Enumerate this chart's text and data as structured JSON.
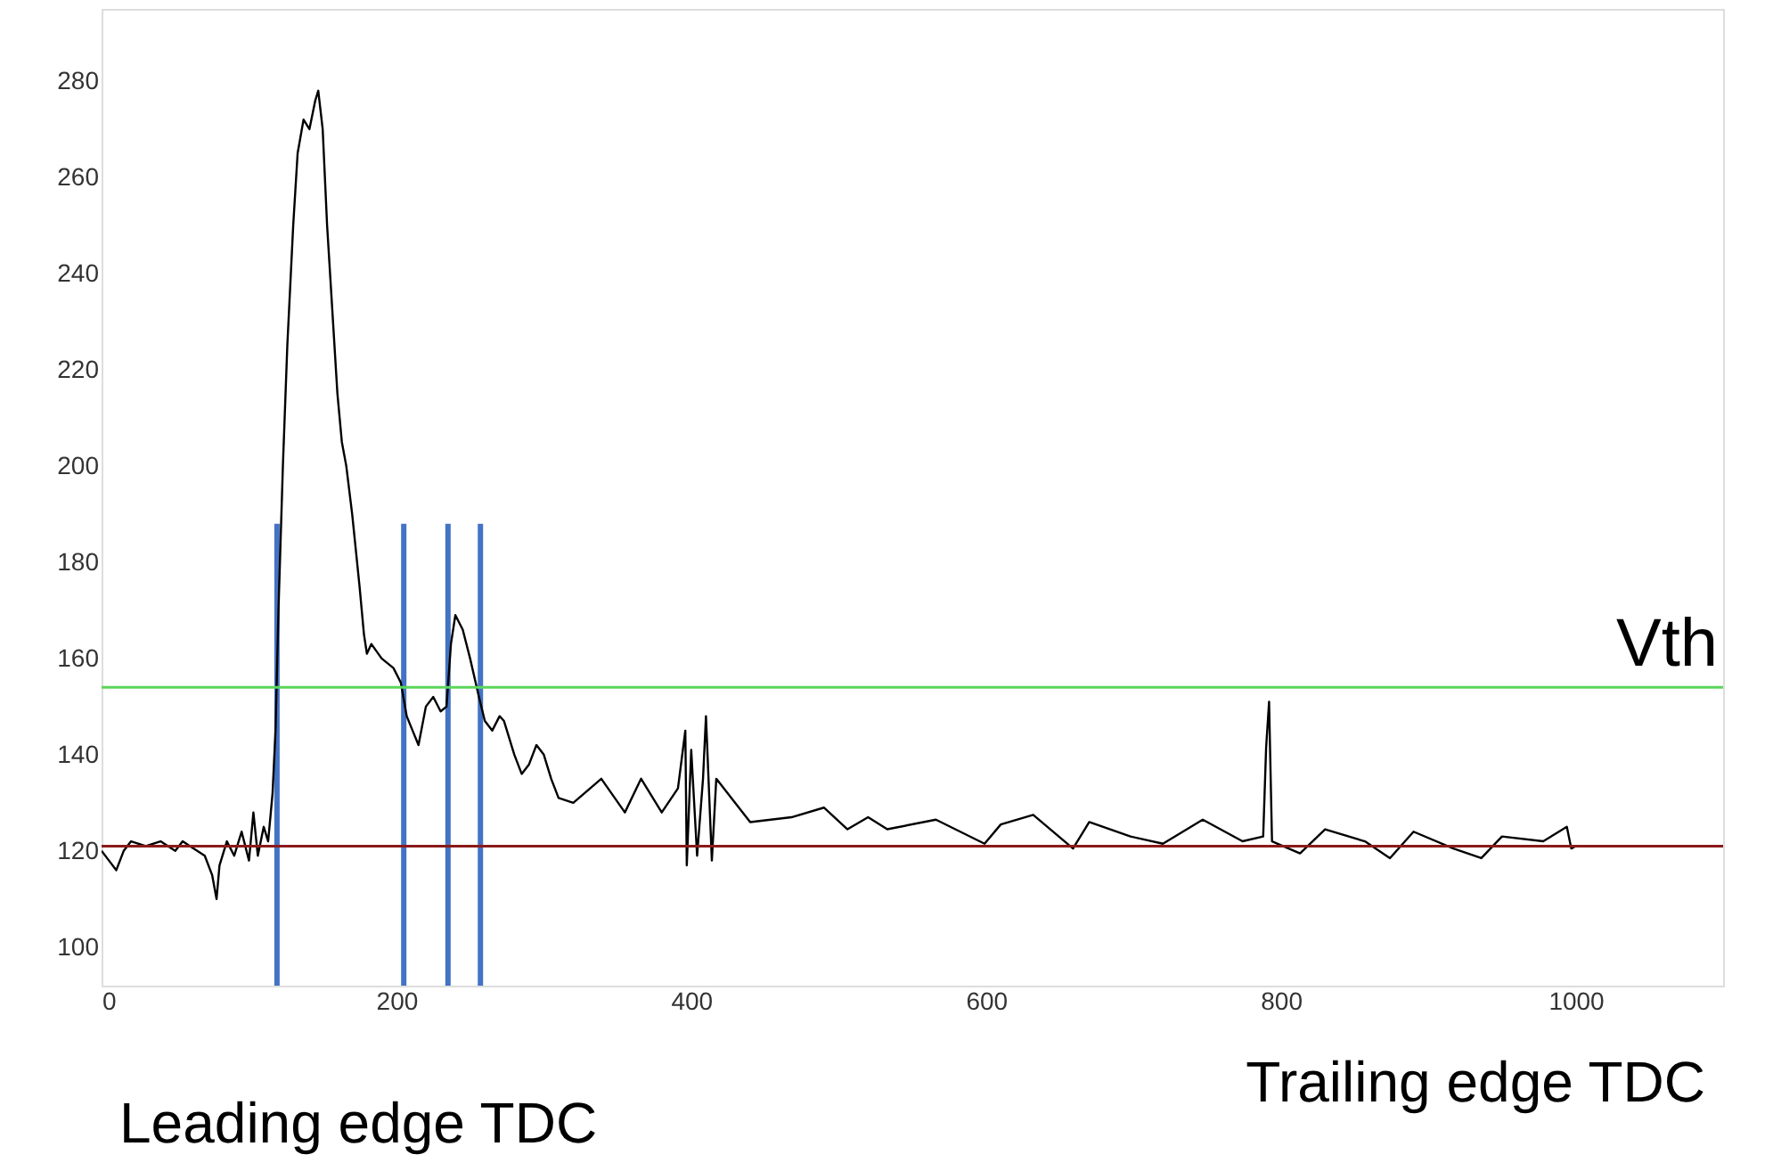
{
  "chart_data": {
    "type": "line",
    "xlim": [
      0,
      1100
    ],
    "ylim": [
      92,
      295
    ],
    "xticks": [
      0,
      200,
      400,
      600,
      800,
      1000
    ],
    "yticks": [
      100,
      120,
      140,
      160,
      180,
      200,
      220,
      240,
      260,
      280
    ],
    "grid": false,
    "line_style": "solid",
    "series": [
      {
        "color": "#000000",
        "x": [
          0,
          5,
          10,
          15,
          20,
          30,
          40,
          50,
          55,
          60,
          70,
          75,
          78,
          80,
          85,
          90,
          95,
          100,
          103,
          106,
          110,
          113,
          116,
          118,
          120,
          123,
          126,
          130,
          133,
          137,
          141,
          145,
          147,
          150,
          153,
          157,
          160,
          163,
          166,
          170,
          175,
          178,
          180,
          183,
          190,
          198,
          203,
          207,
          211,
          215,
          220,
          225,
          230,
          234,
          237,
          240,
          245,
          250,
          256,
          260,
          265,
          270,
          273,
          280,
          285,
          290,
          295,
          300,
          305,
          310,
          320,
          339,
          355,
          366,
          380,
          391,
          396,
          397,
          400,
          404,
          408,
          410,
          414,
          417,
          440,
          468,
          490,
          506,
          520,
          533,
          566,
          599,
          610,
          632,
          659,
          670,
          698,
          720,
          747,
          774,
          788,
          790,
          792,
          794,
          813,
          830,
          857,
          874,
          890,
          917,
          936,
          950,
          978,
          994,
          997,
          1000
        ],
        "values": [
          120,
          118,
          116,
          120,
          122,
          121,
          122,
          120,
          122,
          121,
          119,
          115,
          110,
          117,
          122,
          119,
          124,
          118,
          128,
          119,
          125,
          122,
          132,
          145,
          170,
          200,
          225,
          250,
          265,
          272,
          270,
          276,
          278,
          270,
          250,
          230,
          215,
          205,
          200,
          190,
          175,
          165,
          161,
          163,
          160,
          158,
          155,
          148,
          145,
          142,
          150,
          152,
          149,
          150,
          163,
          169,
          166,
          160,
          152,
          147,
          145,
          148,
          147,
          140,
          136,
          138,
          142,
          140,
          135,
          131,
          130,
          135,
          128,
          135,
          128,
          133,
          145,
          117,
          141,
          119,
          135,
          148,
          118,
          135,
          126,
          127,
          129,
          124.5,
          127,
          124.5,
          126.5,
          121.5,
          125.5,
          127.5,
          120.5,
          126,
          123,
          121.5,
          126.5,
          122,
          123,
          141.5,
          151,
          122,
          119.5,
          124.5,
          122,
          118.5,
          124,
          120.5,
          118.5,
          123,
          122,
          125,
          120.5,
          121
        ]
      },
      {
        "type": "line",
        "color": "#4472c4",
        "x": [
          119,
          119
        ],
        "values": [
          92,
          188
        ]
      },
      {
        "type": "line",
        "color": "#4472c4",
        "x": [
          205,
          205
        ],
        "values": [
          92,
          188
        ]
      },
      {
        "type": "line",
        "color": "#4472c4",
        "x": [
          235,
          235
        ],
        "values": [
          92,
          188
        ]
      },
      {
        "type": "line",
        "color": "#4472c4",
        "x": [
          257,
          257
        ],
        "values": [
          92,
          188
        ]
      }
    ],
    "ref_lines": [
      {
        "axis": "y",
        "value": 154,
        "label": "Vth",
        "color": "#5cd65c"
      },
      {
        "axis": "y",
        "value": 121,
        "color": "#8b1a1a"
      }
    ],
    "annotations": [
      "Leading edge TDC",
      "Trailing edge TDC"
    ]
  }
}
